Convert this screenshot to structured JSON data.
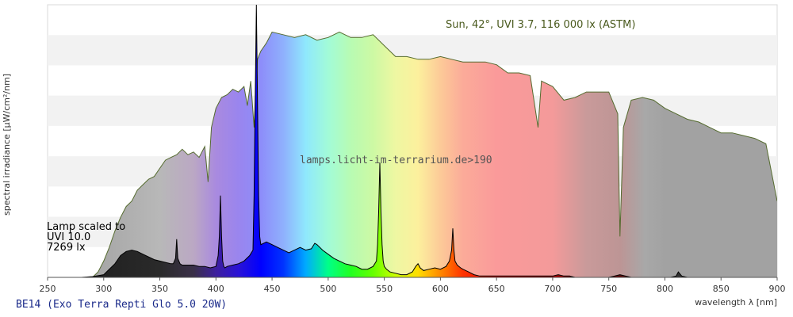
{
  "chart_data": {
    "type": "area",
    "xlabel": "wavelength λ [nm]",
    "ylabel": "spectral irradiance [µW/cm²/nm]",
    "xlim": [
      250,
      900
    ],
    "xticks": [
      250,
      300,
      350,
      400,
      450,
      500,
      550,
      600,
      650,
      700,
      750,
      800,
      850,
      900
    ],
    "ylim": [
      0,
      1
    ],
    "grid": true,
    "annotations": {
      "sun": "Sun, 42°, UVI 3.7, 116 000 lx (ASTM)",
      "lamp_line1": "Lamp scaled to",
      "lamp_line2": "UVI 10.0",
      "lamp_line3": "7269 lx",
      "watermark": "lamps.licht-im-terrarium.de>190",
      "footer": "BE14 (Exo Terra Repti Glo 5.0 20W)"
    },
    "series": [
      {
        "role": "sun",
        "x": [
          290,
          295,
          300,
          305,
          310,
          315,
          320,
          325,
          330,
          335,
          340,
          345,
          350,
          355,
          360,
          365,
          370,
          375,
          380,
          385,
          390,
          393,
          396,
          400,
          405,
          410,
          415,
          420,
          425,
          428,
          431,
          434,
          437,
          440,
          445,
          450,
          460,
          470,
          480,
          490,
          500,
          510,
          520,
          530,
          540,
          550,
          560,
          570,
          580,
          590,
          600,
          610,
          620,
          630,
          640,
          650,
          660,
          670,
          680,
          687,
          690,
          700,
          710,
          720,
          730,
          740,
          750,
          758,
          760,
          763,
          770,
          780,
          790,
          800,
          810,
          820,
          830,
          840,
          850,
          860,
          870,
          880,
          890,
          900
        ],
        "values": [
          0.0,
          0.02,
          0.06,
          0.11,
          0.17,
          0.22,
          0.26,
          0.28,
          0.32,
          0.34,
          0.36,
          0.37,
          0.4,
          0.43,
          0.44,
          0.45,
          0.47,
          0.45,
          0.46,
          0.44,
          0.48,
          0.35,
          0.55,
          0.62,
          0.66,
          0.67,
          0.69,
          0.68,
          0.7,
          0.63,
          0.72,
          0.55,
          0.8,
          0.83,
          0.86,
          0.9,
          0.89,
          0.88,
          0.89,
          0.87,
          0.88,
          0.9,
          0.88,
          0.88,
          0.89,
          0.85,
          0.81,
          0.81,
          0.8,
          0.8,
          0.81,
          0.8,
          0.79,
          0.79,
          0.79,
          0.78,
          0.75,
          0.75,
          0.74,
          0.55,
          0.72,
          0.7,
          0.65,
          0.66,
          0.68,
          0.68,
          0.68,
          0.6,
          0.15,
          0.55,
          0.65,
          0.66,
          0.65,
          0.62,
          0.6,
          0.58,
          0.57,
          0.55,
          0.53,
          0.53,
          0.52,
          0.51,
          0.49,
          0.28
        ]
      },
      {
        "role": "lamp",
        "x": [
          250,
          280,
          290,
          300,
          305,
          310,
          315,
          320,
          325,
          330,
          335,
          340,
          345,
          350,
          355,
          360,
          362,
          364,
          365,
          366,
          368,
          370,
          375,
          380,
          385,
          390,
          395,
          400,
          402,
          403,
          404,
          405,
          406,
          407,
          408,
          410,
          415,
          420,
          425,
          430,
          433,
          434,
          435,
          436,
          437,
          438,
          439,
          440,
          445,
          450,
          455,
          460,
          465,
          470,
          475,
          480,
          485,
          488,
          490,
          495,
          500,
          505,
          510,
          515,
          520,
          525,
          530,
          535,
          540,
          543,
          544,
          545,
          546,
          547,
          548,
          549,
          550,
          552,
          555,
          560,
          565,
          570,
          575,
          578,
          580,
          582,
          585,
          590,
          595,
          600,
          605,
          608,
          610,
          611,
          612,
          613,
          615,
          618,
          620,
          625,
          630,
          635,
          640,
          650,
          660,
          670,
          680,
          690,
          700,
          705,
          710,
          715,
          720,
          730,
          740,
          750,
          755,
          760,
          765,
          770,
          780,
          790,
          800,
          805,
          810,
          812,
          815,
          820,
          830,
          840,
          850,
          860,
          870,
          880,
          890,
          900
        ],
        "values": [
          0.0,
          0.0,
          0.003,
          0.01,
          0.03,
          0.05,
          0.08,
          0.095,
          0.1,
          0.095,
          0.085,
          0.075,
          0.065,
          0.06,
          0.055,
          0.05,
          0.05,
          0.07,
          0.14,
          0.07,
          0.05,
          0.045,
          0.045,
          0.045,
          0.04,
          0.04,
          0.035,
          0.04,
          0.08,
          0.15,
          0.3,
          0.15,
          0.06,
          0.04,
          0.035,
          0.04,
          0.045,
          0.05,
          0.06,
          0.08,
          0.1,
          0.3,
          0.65,
          1.0,
          0.65,
          0.3,
          0.15,
          0.12,
          0.13,
          0.12,
          0.11,
          0.1,
          0.09,
          0.1,
          0.11,
          0.1,
          0.105,
          0.125,
          0.12,
          0.1,
          0.085,
          0.07,
          0.06,
          0.05,
          0.045,
          0.04,
          0.03,
          0.03,
          0.04,
          0.06,
          0.12,
          0.24,
          0.42,
          0.24,
          0.12,
          0.06,
          0.04,
          0.03,
          0.02,
          0.015,
          0.01,
          0.01,
          0.02,
          0.04,
          0.05,
          0.035,
          0.025,
          0.03,
          0.035,
          0.03,
          0.04,
          0.06,
          0.1,
          0.18,
          0.1,
          0.06,
          0.045,
          0.035,
          0.03,
          0.02,
          0.01,
          0.005,
          0.005,
          0.005,
          0.005,
          0.005,
          0.005,
          0.005,
          0.005,
          0.01,
          0.005,
          0.005,
          0.0,
          0.0,
          0.0,
          0.0,
          0.005,
          0.01,
          0.005,
          0.0,
          0.0,
          0.0,
          0.0,
          0.0,
          0.005,
          0.02,
          0.005,
          0.0,
          0.0,
          0.0,
          0.0,
          0.0,
          0.0,
          0.0,
          0.0,
          0.0
        ]
      }
    ]
  }
}
